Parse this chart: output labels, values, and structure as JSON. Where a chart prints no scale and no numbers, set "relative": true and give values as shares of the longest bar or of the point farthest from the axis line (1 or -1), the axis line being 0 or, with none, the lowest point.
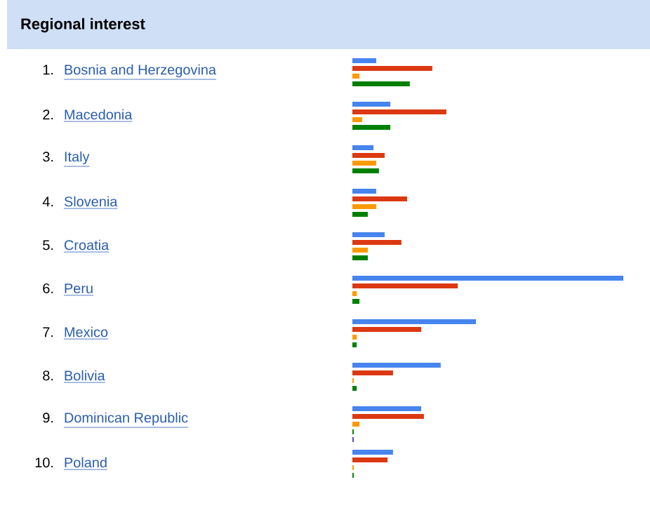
{
  "chart_data": {
    "type": "bar",
    "orientation": "horizontal",
    "relative": true,
    "title": "Regional interest",
    "categories": [
      "Bosnia and Herzegovina",
      "Macedonia",
      "Italy",
      "Slovenia",
      "Croatia",
      "Peru",
      "Mexico",
      "Bolivia",
      "Dominican Republic",
      "Poland"
    ],
    "annotations": [
      "1.",
      "2.",
      "3.",
      "4.",
      "5.",
      "6.",
      "7.",
      "8.",
      "9.",
      "10."
    ],
    "series": [
      {
        "color": "#4684ee",
        "values": [
          0.088,
          0.14,
          0.078,
          0.088,
          0.119,
          1,
          0.456,
          0.326,
          0.254,
          0.15
        ]
      },
      {
        "color": "#dc3912",
        "values": [
          0.295,
          0.347,
          0.119,
          0.202,
          0.181,
          0.389,
          0.254,
          0.15,
          0.264,
          0.13
        ]
      },
      {
        "color": "#ff9900",
        "values": [
          0.026,
          0.036,
          0.088,
          0.088,
          0.057,
          0.016,
          0.016,
          0.005,
          0.026,
          0.005
        ]
      },
      {
        "color": "#008000",
        "values": [
          0.212,
          0.14,
          0.098,
          0.057,
          0.057,
          0.026,
          0.016,
          0.016,
          0.005,
          0.005
        ]
      },
      {
        "color": "#4942cc",
        "values": [
          null,
          null,
          null,
          null,
          null,
          null,
          null,
          null,
          0.005,
          null
        ]
      }
    ]
  }
}
